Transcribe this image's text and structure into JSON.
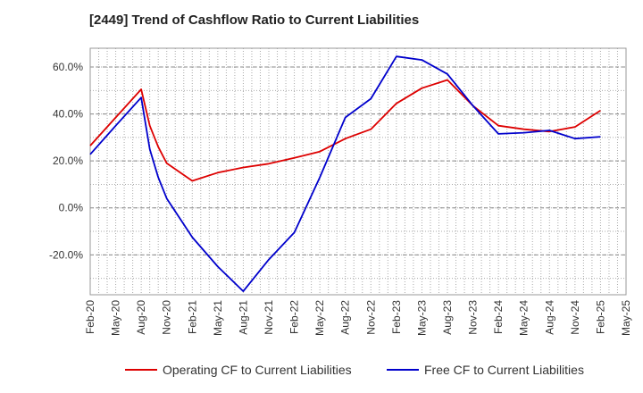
{
  "chart_data": {
    "type": "line",
    "title": "[2449]  Trend of Cashflow Ratio to Current Liabilities",
    "xlabel": "",
    "ylabel": "",
    "x_ticks": [
      "Feb-20",
      "May-20",
      "Aug-20",
      "Nov-20",
      "Feb-21",
      "May-21",
      "Aug-21",
      "Nov-21",
      "Feb-22",
      "May-22",
      "Aug-22",
      "Nov-22",
      "Feb-23",
      "May-23",
      "Aug-23",
      "Nov-23",
      "Feb-24",
      "May-24",
      "Aug-24",
      "Nov-24",
      "Feb-25",
      "May-25"
    ],
    "y_ticks": [
      60,
      40,
      20,
      0,
      -20
    ],
    "y_tick_labels": [
      "60.0%",
      "40.0%",
      "20.0%",
      "0.0%",
      "-20.0%"
    ],
    "ylim": [
      -37,
      68
    ],
    "grid": true,
    "legend_position": "bottom",
    "series": [
      {
        "name": "Operating CF to Current Liabilities",
        "color": "#dd0000",
        "x": [
          "Feb-20",
          "May-20",
          "Aug-20",
          "Sep-20",
          "Oct-20",
          "Nov-20",
          "Feb-21",
          "May-21",
          "Aug-21",
          "Nov-21",
          "Feb-22",
          "May-22",
          "Aug-22",
          "Nov-22",
          "Feb-23",
          "May-23",
          "Aug-23",
          "Nov-23",
          "Feb-24",
          "May-24",
          "Aug-24",
          "Nov-24",
          "Feb-25"
        ],
        "values": [
          26.5,
          38.5,
          50.5,
          35,
          26,
          19,
          11.5,
          15,
          17.2,
          18.8,
          21.3,
          24,
          29.5,
          33.5,
          44.5,
          51,
          54.5,
          43.5,
          35,
          33.5,
          32.5,
          34.5,
          41.5
        ]
      },
      {
        "name": "Free CF to Current Liabilities",
        "color": "#0000cc",
        "x": [
          "Feb-20",
          "May-20",
          "Aug-20",
          "Sep-20",
          "Oct-20",
          "Nov-20",
          "Feb-21",
          "May-21",
          "Aug-21",
          "Nov-21",
          "Feb-22",
          "May-22",
          "Aug-22",
          "Nov-22",
          "Feb-23",
          "May-23",
          "Aug-23",
          "Nov-23",
          "Feb-24",
          "May-24",
          "Aug-24",
          "Nov-24",
          "Feb-25"
        ],
        "values": [
          22.8,
          35,
          47,
          25,
          13,
          4,
          -12.5,
          -25,
          -35.5,
          -22,
          -10.5,
          13,
          38.5,
          46.5,
          64.5,
          63,
          57,
          43.5,
          31.5,
          32,
          33,
          29.5,
          30.3
        ]
      }
    ]
  }
}
